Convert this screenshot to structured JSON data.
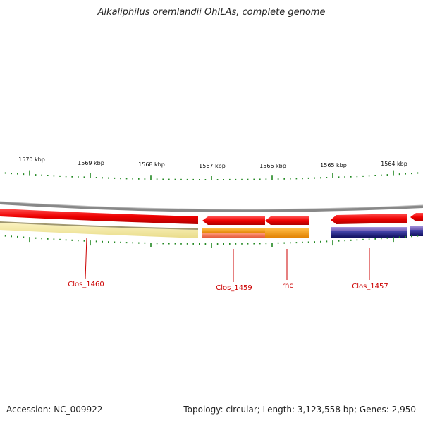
{
  "title": "Alkaliphilus oremlandii OhILAs, complete genome",
  "footer": {
    "accession": "Accession: NC_009922",
    "summary": "Topology: circular; Length: 3,123,558 bp; Genes: 2,950"
  },
  "ruler_labels": [
    "1570 kbp",
    "1569 kbp",
    "1568 kbp",
    "1567 kbp",
    "1566 kbp",
    "1565 kbp",
    "1564 kbp"
  ],
  "gene_labels": [
    "Clos_1460",
    "Clos_1459",
    "rnc",
    "Clos_1457"
  ],
  "colors": {
    "gene_label": "#cc0000",
    "tick": "#228822",
    "backbone": "#888888",
    "gene_red": "#ee0000",
    "gene_yellow": "#f2e6a0",
    "gene_orange": "#ff9900",
    "gene_salmon": "#f08060",
    "gene_navy": "#202080",
    "gene_lavender": "#8070c0"
  }
}
